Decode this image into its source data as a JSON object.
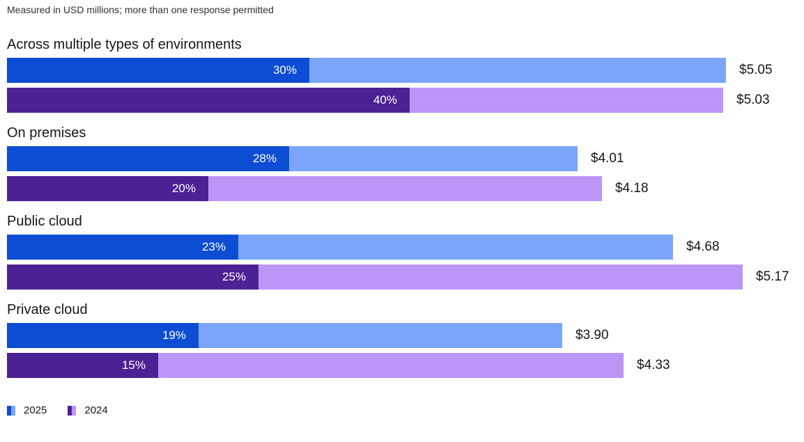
{
  "subtitle": "Measured in USD millions; more than one response permitted",
  "colors": {
    "blue_dark": "#0d4dd3",
    "blue_light": "#7aa5f8",
    "purple_dark": "#4c2193",
    "purple_light": "#bb96f6",
    "text": "#161616",
    "pct_text": "#ffffff"
  },
  "chart_data": {
    "type": "bar",
    "orientation": "horizontal",
    "title": "",
    "subtitle": "Measured in USD millions; more than one response permitted",
    "unit": "USD millions",
    "grid": false,
    "legend_position": "bottom",
    "categories": [
      "Across multiple types of environments",
      "On premises",
      "Public cloud",
      "Private cloud"
    ],
    "series": [
      {
        "name": "2025",
        "color_dark": "#0d4dd3",
        "color_light": "#7aa5f8",
        "values": [
          5.05,
          4.01,
          4.68,
          3.9
        ],
        "value_labels": [
          "$5.05",
          "$4.01",
          "$4.68",
          "$3.90"
        ],
        "pct": [
          30,
          28,
          23,
          19
        ],
        "pct_labels": [
          "30%",
          "28%",
          "23%",
          "19%"
        ]
      },
      {
        "name": "2024",
        "color_dark": "#4c2193",
        "color_light": "#bb96f6",
        "values": [
          5.03,
          4.18,
          5.17,
          4.33
        ],
        "value_labels": [
          "$5.03",
          "$4.18",
          "$5.17",
          "$4.33"
        ],
        "pct": [
          40,
          20,
          25,
          15
        ],
        "pct_labels": [
          "40%",
          "20%",
          "25%",
          "15%"
        ]
      }
    ]
  },
  "legend": {
    "items": [
      {
        "label": "2025"
      },
      {
        "label": "2024"
      }
    ]
  }
}
